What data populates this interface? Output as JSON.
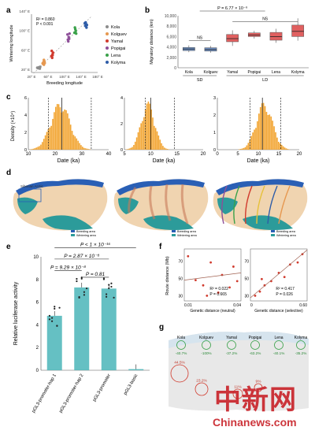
{
  "panel_labels": {
    "a": "a",
    "b": "b",
    "c": "c",
    "d": "d",
    "e": "e",
    "f": "f",
    "g": "g"
  },
  "colors": {
    "kola": "#8c8c8c",
    "kolguev": "#e69850",
    "yamal": "#d13b2e",
    "popigai": "#8e4f99",
    "lena": "#3aa14a",
    "kolyma": "#2f5da8",
    "so_box": "#6d8fc3",
    "ld_box": "#e06060",
    "hist": "#f2a532",
    "breeding": "#2a5fb5",
    "wintering": "#2c9b9a",
    "teal_bar": "#4ab5b8",
    "land": "#f0d4b0",
    "watermark": "#c9252c"
  },
  "chart_data": [
    {
      "panel": "a",
      "type": "scatter",
      "xlabel": "Breeding longitude",
      "ylabel": "Wintering longitude",
      "xticks": [
        "20° E",
        "60° E",
        "100° E",
        "140° E",
        "180° E"
      ],
      "yticks": [
        "20° E",
        "60° E",
        "100° E",
        "140° E"
      ],
      "xlim": [
        20,
        180
      ],
      "ylim": [
        20,
        155
      ],
      "stats": [
        "R² = 0.860",
        "P < 0.001"
      ],
      "series": [
        {
          "name": "Kola",
          "color": "#8c8c8c",
          "points": [
            [
              36,
              30
            ],
            [
              38,
              32
            ],
            [
              40,
              29
            ],
            [
              41,
              33
            ],
            [
              34,
              31
            ]
          ]
        },
        {
          "name": "Kolguev",
          "color": "#e69850",
          "points": [
            [
              48,
              40
            ],
            [
              49,
              44
            ],
            [
              50,
              38
            ],
            [
              51,
              46
            ],
            [
              50,
              49
            ],
            [
              47,
              41
            ],
            [
              52,
              42
            ]
          ]
        },
        {
          "name": "Yamal",
          "color": "#d13b2e",
          "points": [
            [
              68,
              58
            ],
            [
              70,
              54
            ],
            [
              71,
              62
            ],
            [
              72,
              66
            ],
            [
              69,
              70
            ],
            [
              71,
              60
            ]
          ]
        },
        {
          "name": "Popigai",
          "color": "#8e4f99",
          "points": [
            [
              108,
              96
            ],
            [
              110,
              102
            ],
            [
              111,
              98
            ],
            [
              107,
              108
            ],
            [
              112,
              110
            ],
            [
              109,
              92
            ]
          ]
        },
        {
          "name": "Lena",
          "color": "#3aa14a",
          "points": [
            [
              124,
              112
            ],
            [
              126,
              120
            ],
            [
              127,
              116
            ],
            [
              125,
              124
            ],
            [
              128,
              110
            ]
          ]
        },
        {
          "name": "Kolyma",
          "color": "#2f5da8",
          "points": [
            [
              150,
              128
            ],
            [
              152,
              132
            ],
            [
              153,
              124
            ],
            [
              151,
              136
            ],
            [
              154,
              130
            ],
            [
              149,
              134
            ]
          ]
        }
      ]
    },
    {
      "panel": "b",
      "type": "box",
      "ylabel": "Migratory distance (km)",
      "ylim": [
        0,
        10000
      ],
      "yticks": [
        "0",
        "2,000",
        "4,000",
        "6,000",
        "8,000",
        "10,000"
      ],
      "categories": [
        "Kola",
        "Kolguev",
        "Yamal",
        "Popigai",
        "Lena",
        "Kolyma"
      ],
      "groups": [
        {
          "label": "SD",
          "span": [
            0,
            1
          ]
        },
        {
          "label": "LD",
          "span": [
            2,
            5
          ]
        }
      ],
      "annotations": [
        "P = 6.77 × 10⁻⁹",
        "NS",
        "NS"
      ],
      "boxes": [
        {
          "min": 3000,
          "q1": 3300,
          "median": 3600,
          "q3": 3900,
          "max": 4300,
          "color": "#6d8fc3"
        },
        {
          "min": 2900,
          "q1": 3200,
          "median": 3500,
          "q3": 3850,
          "max": 4200,
          "color": "#6d8fc3"
        },
        {
          "min": 4200,
          "q1": 5000,
          "median": 5600,
          "q3": 6400,
          "max": 7200,
          "color": "#e06060"
        },
        {
          "min": 5600,
          "q1": 6000,
          "median": 6300,
          "q3": 6700,
          "max": 7100,
          "color": "#e06060"
        },
        {
          "min": 4800,
          "q1": 5300,
          "median": 6000,
          "q3": 6800,
          "max": 7500,
          "color": "#e06060"
        },
        {
          "min": 5200,
          "q1": 6000,
          "median": 7000,
          "q3": 8200,
          "max": 9500,
          "color": "#e06060"
        }
      ]
    },
    {
      "panel": "c",
      "type": "histogram",
      "ylabel": "Density (×10⁴)",
      "xlabel": "Date (ka)",
      "subplots": [
        {
          "xlim": [
            10,
            40
          ],
          "xticks": [
            "10",
            "20",
            "30",
            "40"
          ],
          "ymax": 6,
          "yticks": [
            "0",
            "2",
            "4",
            "6"
          ],
          "peak": 22,
          "spread": 3.6,
          "solid": 22.5,
          "dashed": [
            17.5,
            33.5
          ]
        },
        {
          "xlim": [
            5,
            20
          ],
          "xticks": [
            "5",
            "10",
            "15",
            "20"
          ],
          "ymax": 4,
          "yticks": [
            "0",
            "2",
            "4"
          ],
          "peak": 9.5,
          "spread": 1.3,
          "solid": 10,
          "dashed": [
            9,
            14.5
          ]
        },
        {
          "xlim": [
            0,
            20
          ],
          "xticks": [
            "0",
            "5",
            "10",
            "15",
            "20"
          ],
          "ymax": 3,
          "yticks": [
            "0",
            "1",
            "2",
            "3"
          ],
          "peak": 11.5,
          "spread": 2.0,
          "solid": 11,
          "dashed": [
            8,
            15.5
          ]
        }
      ]
    },
    {
      "panel": "e",
      "type": "bar",
      "ylabel": "Relative luciferase activity",
      "categories": [
        "pGL3-promoter-hap 1",
        "pGL3-promoter-hap 2",
        "pGL3-promoter",
        "pGL3-basic"
      ],
      "values": [
        4.8,
        7.3,
        7.2,
        0.1
      ],
      "ylim": [
        0,
        10
      ],
      "yticks": [
        "0",
        "2",
        "4",
        "6",
        "8",
        "10"
      ],
      "comparisons": [
        "P < 1 × 10⁻¹⁶",
        "P = 2.87 × 10⁻⁸",
        "P = 9.29 × 10⁻⁸",
        "P = 0.81"
      ]
    },
    {
      "panel": "f",
      "type": "scatter",
      "ylabel": "Route distance (Mb)",
      "subplots": [
        {
          "xlabel": "Genetic distance (neutral)",
          "xticks": [
            "0.01",
            "0.04"
          ],
          "xlim": [
            0.01,
            0.04
          ],
          "yticks": [
            "30",
            "50",
            "70"
          ],
          "ylim": [
            25,
            75
          ],
          "stats": [
            "R² = 0.022",
            "P = 0.665"
          ],
          "points": [
            [
              0.012,
              68
            ],
            [
              0.016,
              45
            ],
            [
              0.02,
              40
            ],
            [
              0.024,
              62
            ],
            [
              0.03,
              50
            ],
            [
              0.034,
              38
            ],
            [
              0.036,
              58
            ],
            [
              0.038,
              44
            ],
            [
              0.022,
              30
            ],
            [
              0.028,
              33
            ]
          ]
        },
        {
          "xlabel": "Genetic distance (selective)",
          "xticks": [
            "0",
            "0.60"
          ],
          "xlim": [
            0,
            0.6
          ],
          "yticks": [
            "30",
            "50",
            "70"
          ],
          "ylim": [
            25,
            75
          ],
          "stats": [
            "R² = 0.417",
            "P = 0.026"
          ],
          "points": [
            [
              0.05,
              30
            ],
            [
              0.1,
              34
            ],
            [
              0.15,
              40
            ],
            [
              0.22,
              44
            ],
            [
              0.3,
              52
            ],
            [
              0.36,
              48
            ],
            [
              0.42,
              60
            ],
            [
              0.5,
              62
            ],
            [
              0.55,
              70
            ],
            [
              0.12,
              46
            ]
          ]
        }
      ]
    }
  ],
  "panel_d": {
    "legends": [
      [
        "Breeding area",
        "Wintering area"
      ],
      [
        "Breeding area",
        "Wintering area"
      ],
      [
        "Breeding area",
        "Wintering area"
      ]
    ],
    "map_label": "Siberian Arctic"
  },
  "panel_g": {
    "sites": [
      {
        "name": "Kola",
        "pct": "-40.7%"
      },
      {
        "name": "Kolguev",
        "pct": "-100%"
      },
      {
        "name": "Yamal",
        "pct": "-37.2%"
      },
      {
        "name": "Popigai",
        "pct": "-63.2%"
      },
      {
        "name": "Lena",
        "pct": "-40.1%"
      },
      {
        "name": "Kolyma",
        "pct": "-35.2%"
      }
    ],
    "lower_circles": [
      "44.5%",
      "23.2%",
      "11%",
      "9%"
    ]
  },
  "watermark": {
    "chinese": "中新网",
    "latin": "Chinanews.com"
  }
}
